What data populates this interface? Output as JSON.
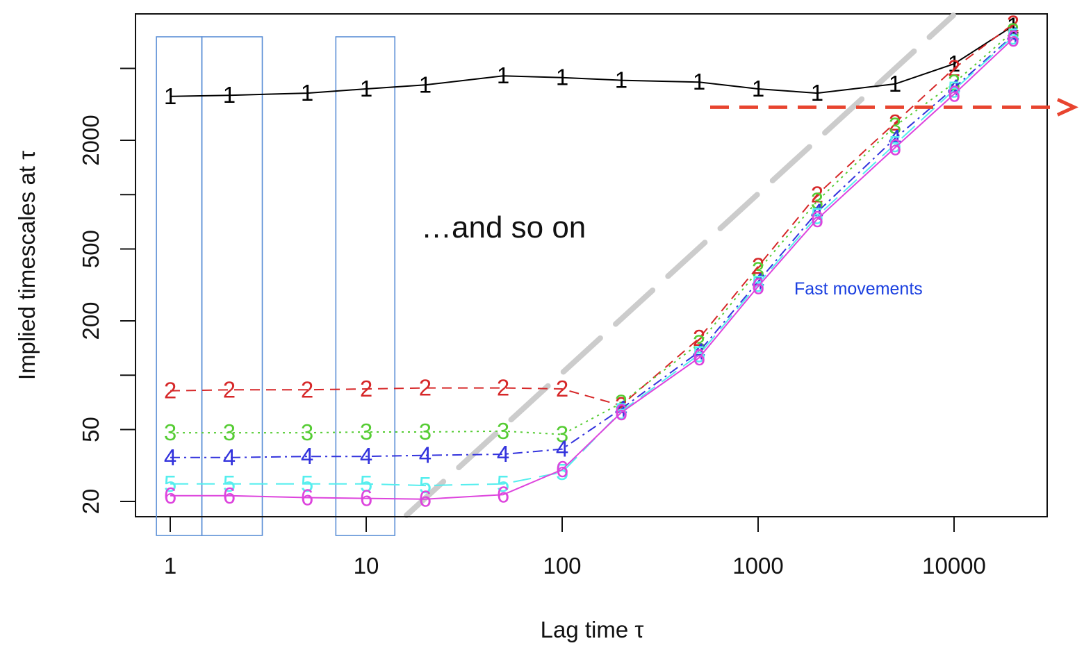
{
  "chart_data": {
    "type": "line",
    "xlabel": "Lag time τ",
    "ylabel": "Implied timescales at τ",
    "x_scale": "log",
    "y_scale": "log",
    "xlim": [
      0.7,
      30000
    ],
    "ylim": [
      17,
      12000
    ],
    "x_ticks": [
      1,
      10,
      100,
      1000,
      10000
    ],
    "x_tick_labels": [
      "1",
      "10",
      "100",
      "1000",
      "10000"
    ],
    "y_ticks": [
      20,
      50,
      200,
      500,
      2000
    ],
    "y_tick_labels": [
      "20",
      "50",
      "200",
      "500",
      "2000"
    ],
    "y_minor_ticks": [
      100,
      1000,
      5000
    ],
    "grid": false,
    "x": [
      1,
      2,
      5,
      10,
      20,
      50,
      100,
      200,
      500,
      1000,
      2000,
      5000,
      10000,
      20000
    ],
    "series": [
      {
        "name": "1",
        "color": "#000000",
        "dash": "solid",
        "values": [
          3500,
          3550,
          3650,
          3850,
          4050,
          4550,
          4450,
          4300,
          4200,
          3850,
          3650,
          4100,
          5300,
          8600
        ]
      },
      {
        "name": "2",
        "color": "#d62728",
        "dash": "dashed",
        "values": [
          82,
          83,
          83,
          84,
          85,
          85,
          84,
          68,
          160,
          400,
          1000,
          2500,
          5000,
          8800
        ]
      },
      {
        "name": "3",
        "color": "#55cc33",
        "dash": "dotted",
        "values": [
          48,
          48,
          48,
          48.5,
          48.5,
          49,
          47,
          70,
          150,
          380,
          920,
          2400,
          4150,
          8000
        ]
      },
      {
        "name": "4",
        "color": "#3333dd",
        "dash": "dashdot",
        "values": [
          35,
          35,
          35.5,
          35.5,
          36,
          36.5,
          39,
          65,
          135,
          330,
          800,
          2050,
          3900,
          7600
        ]
      },
      {
        "name": "5",
        "color": "#55eeee",
        "dash": "longdash",
        "values": [
          25,
          25,
          25,
          25,
          24.5,
          25,
          29,
          63,
          130,
          320,
          760,
          1900,
          3800,
          7500
        ]
      },
      {
        "name": "6",
        "color": "#dd44dd",
        "dash": "solid",
        "values": [
          21.5,
          21.5,
          21,
          20.8,
          20.6,
          21.8,
          30,
          62,
          125,
          310,
          730,
          1820,
          3600,
          7300
        ]
      }
    ],
    "reference_line": {
      "color": "#cccccc",
      "dash": "longdash"
    },
    "highlight_boxes": [
      {
        "x_range": [
          0.85,
          1.45
        ],
        "color": "#5b8fd6"
      },
      {
        "x_range": [
          1.45,
          2.95
        ],
        "color": "#5b8fd6"
      },
      {
        "x_range": [
          7,
          14
        ],
        "color": "#5b8fd6"
      }
    ],
    "arrow": {
      "y": 3050,
      "color": "#e8442f"
    },
    "annotations": [
      {
        "id": "and_so_on",
        "text": "…and so on"
      },
      {
        "id": "fast_movements",
        "text": "Fast movements",
        "color": "#1a3fe0"
      }
    ]
  }
}
